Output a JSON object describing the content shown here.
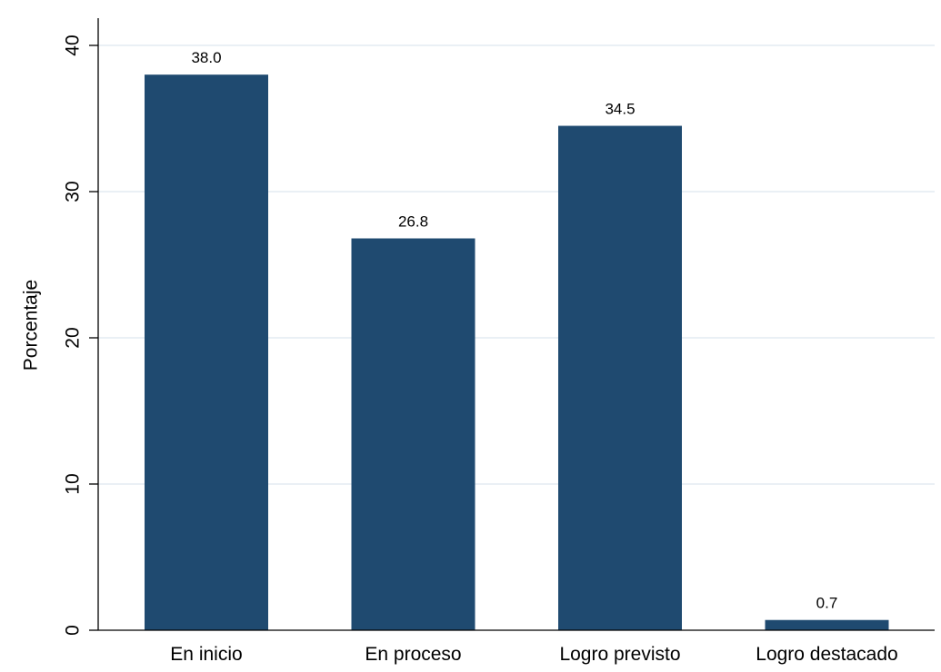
{
  "chart_data": {
    "type": "bar",
    "categories": [
      "En inicio",
      "En proceso",
      "Logro previsto",
      "Logro destacado"
    ],
    "values": [
      38.0,
      26.8,
      34.5,
      0.7
    ],
    "data_labels": [
      "38.0",
      "26.8",
      "34.5",
      "0.7"
    ],
    "title": "",
    "xlabel": "",
    "ylabel": "Porcentaje",
    "ylim": [
      0,
      40
    ],
    "yticks": [
      0,
      10,
      20,
      30,
      40
    ],
    "ytick_labels": [
      "0",
      "10",
      "20",
      "30",
      "40"
    ],
    "grid": true,
    "bar_color": "#1f4a70",
    "grid_color": "#e4ecf2"
  }
}
